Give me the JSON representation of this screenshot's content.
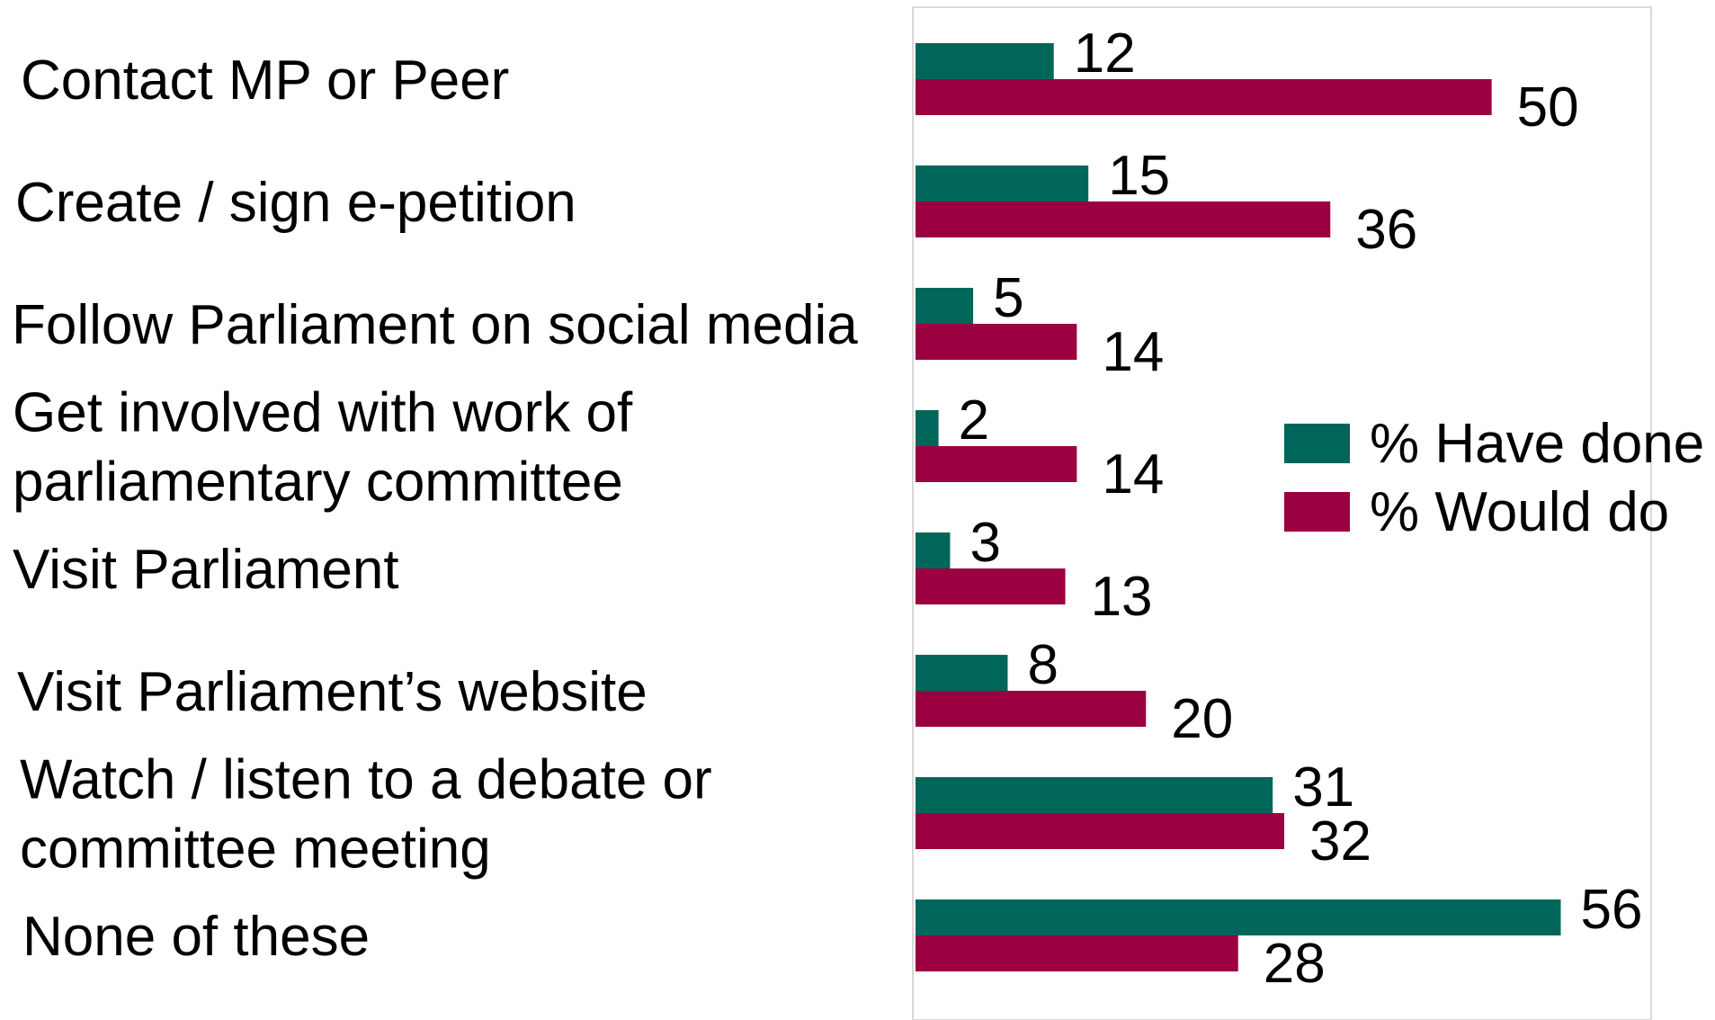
{
  "chart_data": {
    "type": "bar",
    "orientation": "horizontal",
    "categories": [
      [
        "Contact MP or Peer"
      ],
      [
        "Create / sign e-petition"
      ],
      [
        "Follow Parliament on social media"
      ],
      [
        "Get involved with work of",
        "parliamentary committee"
      ],
      [
        "Visit Parliament"
      ],
      [
        "Visit Parliament’s website"
      ],
      [
        "Watch / listen to a debate or",
        "committee meeting"
      ],
      [
        "None of these"
      ]
    ],
    "series": [
      {
        "name": "% Have done",
        "color": "#00665A",
        "values": [
          12,
          15,
          5,
          2,
          3,
          8,
          31,
          56
        ]
      },
      {
        "name": "% Would do",
        "color": "#9B0040",
        "values": [
          50,
          36,
          14,
          14,
          13,
          20,
          32,
          28
        ]
      }
    ],
    "xlim": [
      0,
      64
    ],
    "grid": false,
    "legend_position": "right"
  }
}
